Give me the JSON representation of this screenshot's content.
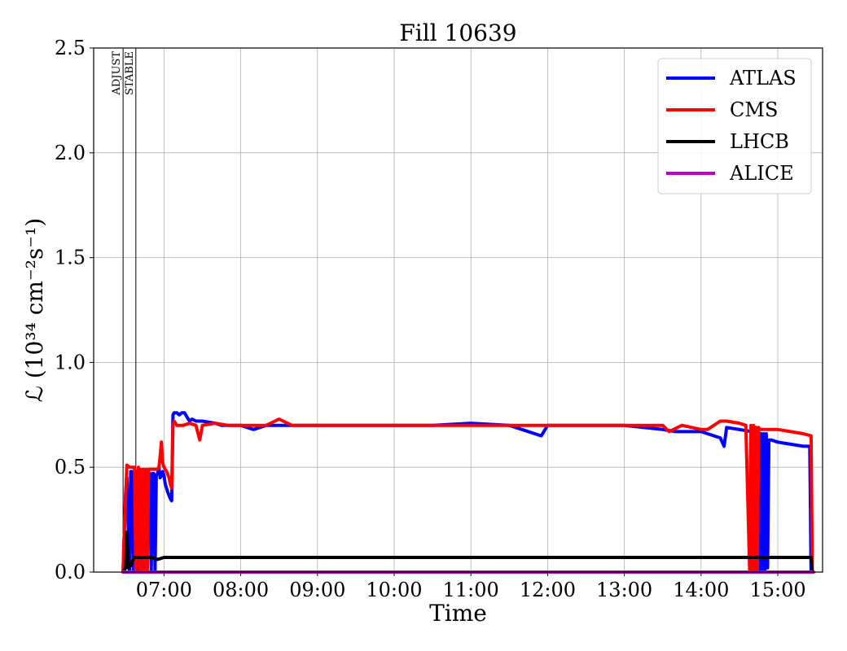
{
  "chart_data": {
    "type": "line",
    "title": "Fill 10639",
    "xlabel": "Time",
    "ylabel": "ℒ (10³⁴ cm⁻²s⁻¹)",
    "ylim": [
      0,
      2.5
    ],
    "xlim": [
      "06:05",
      "15:35"
    ],
    "grid": true,
    "legend_position": "top-right",
    "x_ticks": [
      "07:00",
      "08:00",
      "09:00",
      "10:00",
      "11:00",
      "12:00",
      "13:00",
      "14:00",
      "15:00"
    ],
    "y_ticks": [
      "0.0",
      "0.5",
      "1.0",
      "1.5",
      "2.0",
      "2.5"
    ],
    "markers": [
      {
        "label": "ADJUST",
        "x": "06:28"
      },
      {
        "label": "STABLE",
        "x": "06:38"
      }
    ],
    "series": [
      {
        "name": "ATLAS",
        "color": "#0000ff",
        "x": [
          "06:28",
          "06:29",
          "06:30",
          "06:31",
          "06:33",
          "06:34",
          "06:35",
          "06:36",
          "06:37",
          "06:38",
          "06:40",
          "06:42",
          "06:43",
          "06:44",
          "06:45",
          "06:47",
          "06:48",
          "06:49",
          "06:50",
          "06:51",
          "06:52",
          "06:53",
          "06:54",
          "06:55",
          "06:56",
          "06:57",
          "06:58",
          "06:59",
          "07:00",
          "07:01",
          "07:02",
          "07:03",
          "07:05",
          "07:06",
          "07:07",
          "07:08",
          "07:10",
          "07:12",
          "07:14",
          "07:16",
          "07:18",
          "07:20",
          "07:22",
          "07:25",
          "07:30",
          "07:40",
          "07:45",
          "07:50",
          "08:00",
          "08:10",
          "08:20",
          "08:30",
          "08:40",
          "09:00",
          "09:30",
          "10:00",
          "10:30",
          "11:00",
          "11:30",
          "11:55",
          "12:00",
          "12:30",
          "13:00",
          "13:30",
          "13:40",
          "14:00",
          "14:15",
          "14:18",
          "14:20",
          "14:40",
          "14:42",
          "14:43",
          "14:44",
          "14:45",
          "14:46",
          "14:47",
          "14:48",
          "14:49",
          "14:50",
          "14:51",
          "14:52",
          "14:53",
          "14:55",
          "15:00",
          "15:10",
          "15:20",
          "15:25",
          "15:26",
          "15:27"
        ],
        "y": [
          0.0,
          0.2,
          0.38,
          0.45,
          0.0,
          0.48,
          0.48,
          0.0,
          0.47,
          0.48,
          0.0,
          0.48,
          0.0,
          0.47,
          0.0,
          0.48,
          0.47,
          0.47,
          0.0,
          0.47,
          0.47,
          0.0,
          0.46,
          0.47,
          0.5,
          0.45,
          0.46,
          0.48,
          0.46,
          0.42,
          0.4,
          0.38,
          0.35,
          0.34,
          0.75,
          0.76,
          0.76,
          0.75,
          0.76,
          0.76,
          0.74,
          0.72,
          0.73,
          0.72,
          0.72,
          0.71,
          0.7,
          0.7,
          0.7,
          0.68,
          0.7,
          0.7,
          0.7,
          0.7,
          0.7,
          0.7,
          0.7,
          0.71,
          0.7,
          0.65,
          0.7,
          0.7,
          0.7,
          0.68,
          0.67,
          0.67,
          0.64,
          0.6,
          0.69,
          0.67,
          0.0,
          0.67,
          0.0,
          0.67,
          0.0,
          0.66,
          0.0,
          0.66,
          0.0,
          0.66,
          0.02,
          0.63,
          0.63,
          0.62,
          0.61,
          0.6,
          0.6,
          0.0,
          0.0
        ]
      },
      {
        "name": "CMS",
        "color": "#ff0000",
        "x": [
          "06:28",
          "06:29",
          "06:31",
          "06:33",
          "06:35",
          "06:37",
          "06:38",
          "06:40",
          "06:41",
          "06:42",
          "06:43",
          "06:44",
          "06:45",
          "06:46",
          "06:47",
          "06:48",
          "06:50",
          "06:53",
          "06:55",
          "06:56",
          "06:57",
          "06:58",
          "06:59",
          "07:00",
          "07:02",
          "07:04",
          "07:05",
          "07:06",
          "07:07",
          "07:08",
          "07:10",
          "07:15",
          "07:20",
          "07:25",
          "07:28",
          "07:30",
          "07:40",
          "07:50",
          "08:00",
          "08:20",
          "08:30",
          "08:40",
          "09:00",
          "09:20",
          "09:40",
          "10:00",
          "10:30",
          "11:00",
          "11:30",
          "12:00",
          "12:30",
          "13:00",
          "13:20",
          "13:30",
          "13:35",
          "13:45",
          "14:00",
          "14:05",
          "14:15",
          "14:20",
          "14:30",
          "14:35",
          "14:38",
          "14:39",
          "14:40",
          "14:41",
          "14:42",
          "14:43",
          "14:44",
          "14:45",
          "14:46",
          "15:00",
          "15:10",
          "15:20",
          "15:26",
          "15:27",
          "15:28"
        ],
        "y": [
          0.0,
          0.2,
          0.51,
          0.5,
          0.5,
          0.5,
          0.0,
          0.5,
          0.0,
          0.49,
          0.0,
          0.49,
          0.0,
          0.49,
          0.0,
          0.49,
          0.49,
          0.49,
          0.49,
          0.5,
          0.55,
          0.62,
          0.52,
          0.5,
          0.48,
          0.45,
          0.42,
          0.4,
          0.7,
          0.72,
          0.7,
          0.7,
          0.71,
          0.7,
          0.63,
          0.7,
          0.71,
          0.7,
          0.7,
          0.7,
          0.73,
          0.7,
          0.7,
          0.7,
          0.7,
          0.7,
          0.7,
          0.7,
          0.7,
          0.7,
          0.7,
          0.7,
          0.7,
          0.7,
          0.67,
          0.7,
          0.68,
          0.68,
          0.72,
          0.72,
          0.71,
          0.7,
          0.0,
          0.7,
          0.0,
          0.7,
          0.0,
          0.69,
          0.0,
          0.69,
          0.68,
          0.68,
          0.67,
          0.66,
          0.65,
          0.0,
          0.0
        ]
      },
      {
        "name": "LHCB",
        "color": "#000000",
        "x": [
          "06:28",
          "06:29",
          "06:30",
          "06:31",
          "06:32",
          "06:33",
          "06:34",
          "06:35",
          "06:36",
          "06:37",
          "06:38",
          "06:40",
          "06:45",
          "06:50",
          "06:55",
          "07:00",
          "07:30",
          "08:00",
          "09:00",
          "10:00",
          "11:00",
          "12:00",
          "13:00",
          "14:00",
          "15:00",
          "15:26",
          "15:27"
        ],
        "y": [
          0.0,
          0.01,
          0.02,
          0.19,
          0.02,
          0.04,
          0.03,
          0.05,
          0.06,
          0.07,
          0.07,
          0.07,
          0.07,
          0.07,
          0.06,
          0.07,
          0.07,
          0.07,
          0.07,
          0.07,
          0.07,
          0.07,
          0.07,
          0.07,
          0.07,
          0.07,
          0.0
        ]
      },
      {
        "name": "ALICE",
        "color": "#bf00bf",
        "x": [
          "06:28",
          "15:27"
        ],
        "y": [
          0.0,
          0.0
        ]
      }
    ]
  }
}
